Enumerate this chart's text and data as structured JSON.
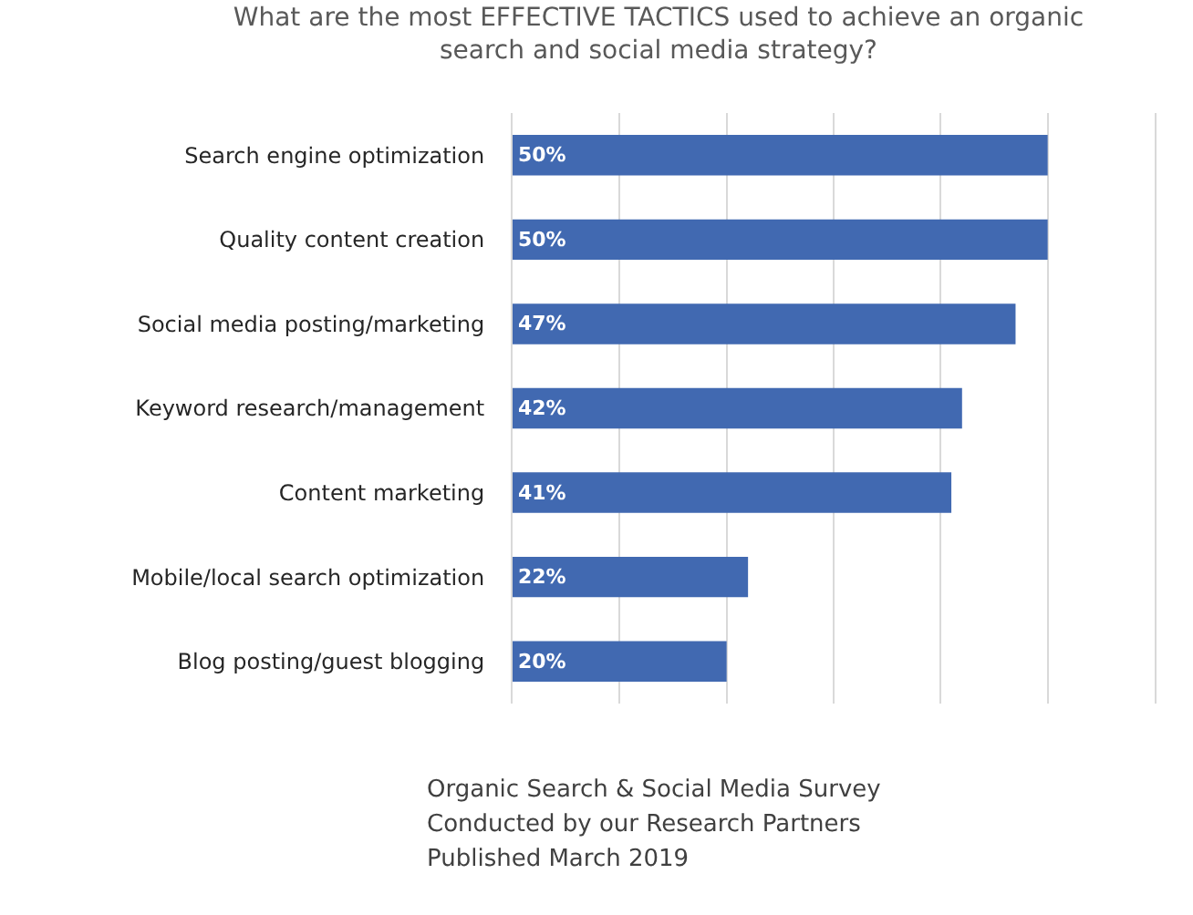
{
  "chart_data": {
    "type": "bar",
    "orientation": "horizontal",
    "title": "What are the most EFFECTIVE TACTICS used to achieve an organic search and social media strategy?",
    "categories": [
      "Search engine optimization",
      "Quality content creation",
      "Social media posting/marketing",
      "Keyword research/management",
      "Content marketing",
      "Mobile/local search optimization",
      "Blog posting/guest blogging"
    ],
    "values": [
      50,
      50,
      47,
      42,
      41,
      22,
      20
    ],
    "value_labels": [
      "50%",
      "50%",
      "47%",
      "42%",
      "41%",
      "22%",
      "20%"
    ],
    "color": "#4169b1",
    "xlim": [
      0,
      60
    ],
    "xticks": [
      {
        "value": 0,
        "label": null
      },
      {
        "value": 10,
        "label": null
      },
      {
        "value": 20,
        "label": null
      },
      {
        "value": 30,
        "label": null
      },
      {
        "value": 40,
        "label": null
      },
      {
        "value": 50,
        "label": null
      },
      {
        "value": 60,
        "label": null
      }
    ],
    "grid": "x",
    "tick_labels": "y",
    "annotations": [
      "Organic Search & Social Media Survey",
      "Conducted by our Research Partners",
      "Published March 2019"
    ]
  }
}
